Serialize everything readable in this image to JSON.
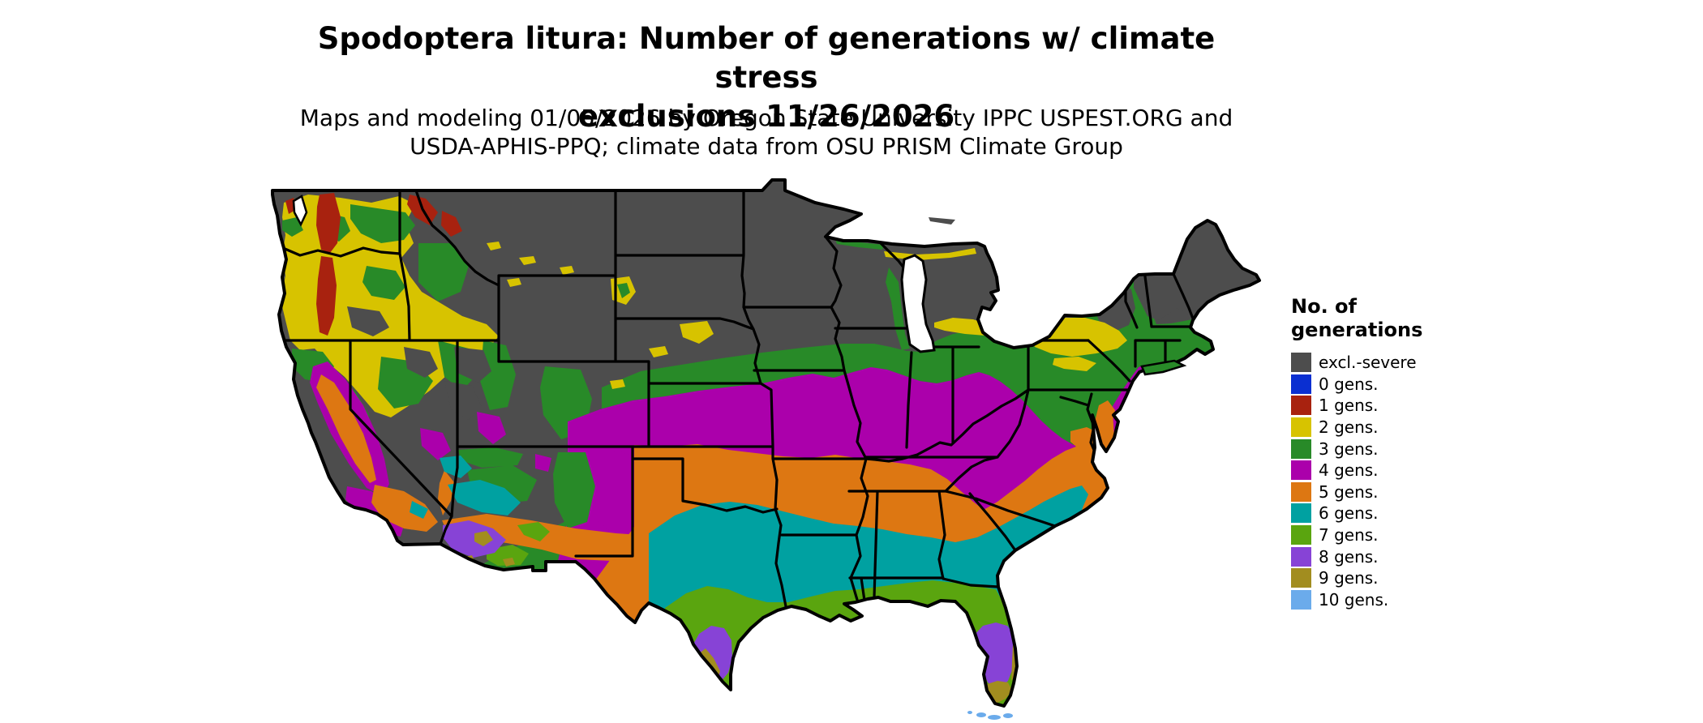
{
  "title": {
    "line1": "Spodoptera litura: Number of generations w/ climate stress",
    "line2": "exclusions 11/26/2026"
  },
  "subtitle": {
    "line1": "Maps and modeling 01/05/2026 by Oregon State University IPPC USPEST.ORG and",
    "line2": "USDA-APHIS-PPQ; climate data from OSU PRISM Climate Group"
  },
  "legend": {
    "title_line1": "No. of",
    "title_line2": "generations",
    "items": [
      {
        "label": "excl.-severe",
        "color": "#4d4d4d"
      },
      {
        "label": "0 gens.",
        "color": "#0a2fd1"
      },
      {
        "label": "1 gens.",
        "color": "#a8220f"
      },
      {
        "label": "2 gens.",
        "color": "#d7c300"
      },
      {
        "label": "3 gens.",
        "color": "#288a28"
      },
      {
        "label": "4 gens.",
        "color": "#ab00ab"
      },
      {
        "label": "5 gens.",
        "color": "#dd7712"
      },
      {
        "label": "6 gens.",
        "color": "#00a1a1"
      },
      {
        "label": "7 gens.",
        "color": "#5aa50f"
      },
      {
        "label": "8 gens.",
        "color": "#8743d6"
      },
      {
        "label": "9 gens.",
        "color": "#a28d1f"
      },
      {
        "label": "10 gens.",
        "color": "#6babeb"
      }
    ]
  },
  "map": {
    "type": "choropleth-raster",
    "extent": "contiguous United States with state boundaries",
    "background": "#ffffff",
    "border_color": "#000000"
  }
}
